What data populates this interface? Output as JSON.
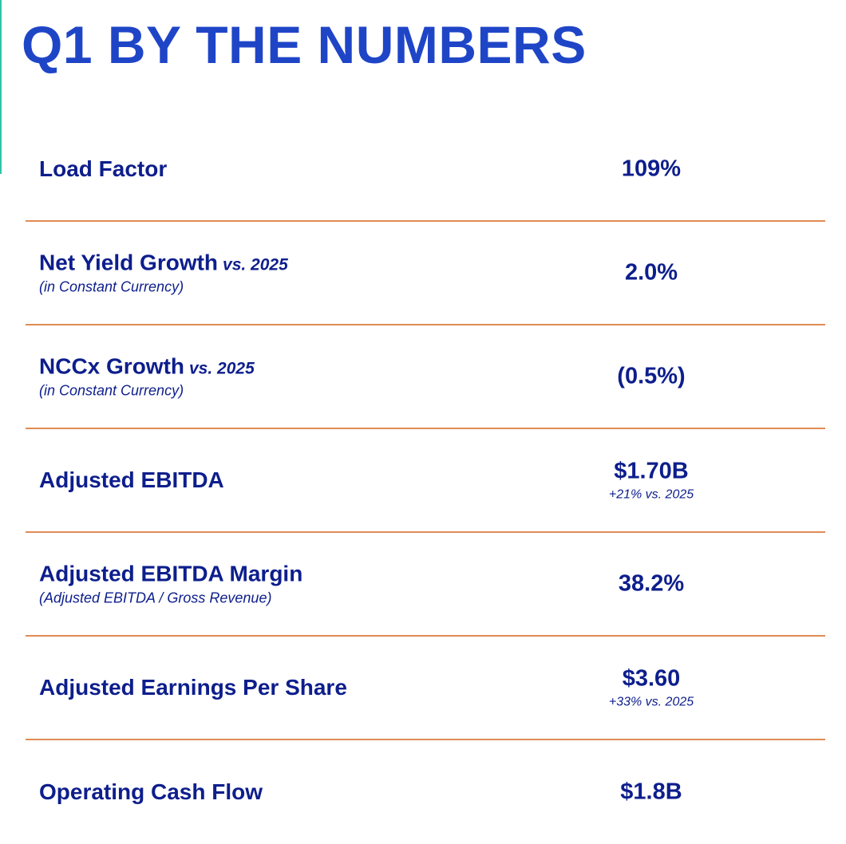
{
  "title": "Q1 BY THE NUMBERS",
  "colors": {
    "title": "#1f45c7",
    "text": "#0d1e8c",
    "divider": "#e08c55",
    "accent_bar": "#2ec4a6"
  },
  "metrics": [
    {
      "label": "Load Factor",
      "compare": "",
      "sublabel": "",
      "value": "109%",
      "note": ""
    },
    {
      "label": "Net Yield Growth",
      "compare": "vs. 2025",
      "sublabel": "(in Constant Currency)",
      "value": "2.0%",
      "note": ""
    },
    {
      "label": "NCCx Growth",
      "compare": "vs. 2025",
      "sublabel": "(in Constant Currency)",
      "value": "(0.5%)",
      "note": ""
    },
    {
      "label": "Adjusted EBITDA",
      "compare": "",
      "sublabel": "",
      "value": "$1.70B",
      "note": "+21% vs. 2025"
    },
    {
      "label": "Adjusted EBITDA Margin",
      "compare": "",
      "sublabel": "(Adjusted EBITDA / Gross Revenue)",
      "value": "38.2%",
      "note": ""
    },
    {
      "label": "Adjusted Earnings Per Share",
      "compare": "",
      "sublabel": "",
      "value": "$3.60",
      "note": "+33% vs. 2025"
    },
    {
      "label": "Operating Cash Flow",
      "compare": "",
      "sublabel": "",
      "value": "$1.8B",
      "note": ""
    }
  ]
}
